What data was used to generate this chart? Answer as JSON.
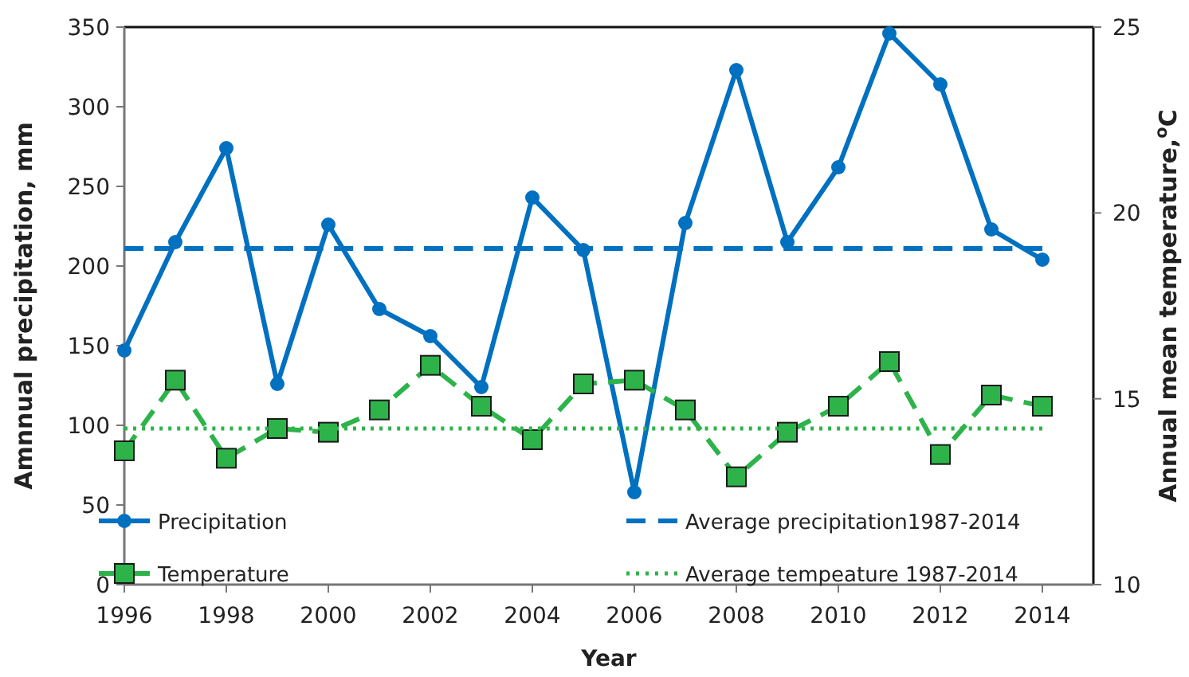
{
  "chart_data": {
    "type": "line",
    "xlabel": "Year",
    "ylabel": "Amnnual precipitation, mm",
    "y2label": "Annual mean temperature,$^{o}$C",
    "x": [
      1996,
      1997,
      1998,
      1999,
      2000,
      2001,
      2002,
      2003,
      2004,
      2005,
      2006,
      2007,
      2008,
      2009,
      2010,
      2011,
      2012,
      2013,
      2014
    ],
    "xlim": [
      1996,
      2015
    ],
    "xticks": [
      1996,
      1998,
      2000,
      2002,
      2004,
      2006,
      2008,
      2010,
      2012,
      2014
    ],
    "ylim": [
      0,
      350
    ],
    "yticks": [
      0,
      50,
      100,
      150,
      200,
      250,
      300,
      350
    ],
    "y2lim": [
      10,
      25
    ],
    "y2ticks": [
      10,
      15,
      20,
      25
    ],
    "legend": "bottom",
    "grid": false,
    "series": [
      {
        "name": "Precipitation",
        "color": "#0070c0",
        "marker": "circle",
        "line_style": "solid",
        "values": [
          147,
          215,
          274,
          126,
          226,
          173,
          156,
          124,
          243,
          210,
          58,
          227,
          323,
          215,
          262,
          346,
          314,
          223,
          204
        ]
      },
      {
        "name": "Average precipitation1987-2014",
        "color": "#0070c0",
        "marker": "none",
        "line_style": "dashed",
        "values": [
          211,
          211,
          211,
          211,
          211,
          211,
          211,
          211,
          211,
          211,
          211,
          211,
          211,
          211,
          211,
          211,
          211,
          211,
          211
        ]
      },
      {
        "name": "Temperature",
        "color": "#2db34a",
        "marker": "square",
        "line_style": "dashed",
        "axis": "y2",
        "values": [
          13.6,
          15.5,
          13.4,
          14.2,
          14.1,
          14.7,
          15.9,
          14.8,
          13.9,
          15.4,
          15.5,
          14.7,
          12.9,
          14.1,
          14.8,
          16.0,
          13.5,
          15.1,
          14.8
        ]
      },
      {
        "name": "Average tempeature 1987-2014",
        "color": "#2db34a",
        "marker": "none",
        "line_style": "dotted",
        "axis": "y2",
        "values": [
          14.2,
          14.2,
          14.2,
          14.2,
          14.2,
          14.2,
          14.2,
          14.2,
          14.2,
          14.2,
          14.2,
          14.2,
          14.2,
          14.2,
          14.2,
          14.2,
          14.2,
          14.2,
          14.2
        ]
      }
    ]
  }
}
